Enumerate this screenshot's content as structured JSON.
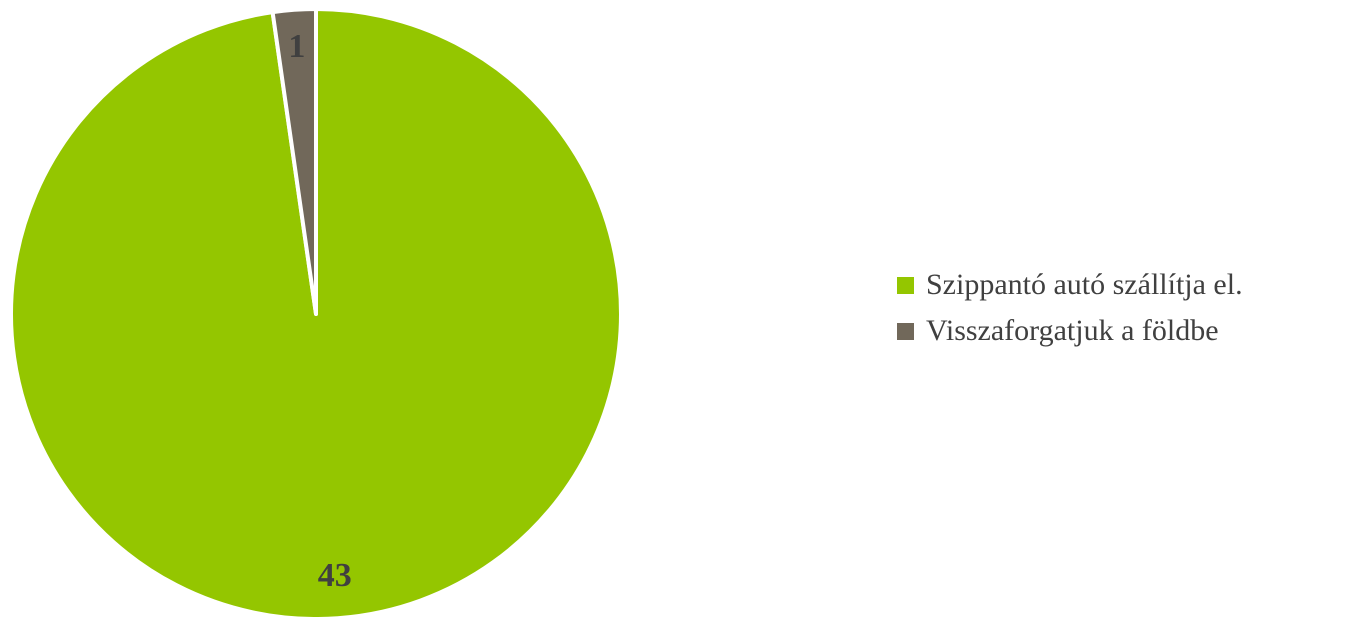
{
  "chart_data": {
    "type": "pie",
    "title": "",
    "slices": [
      {
        "label": "Szippantó autó szállítja el.",
        "value": 43,
        "color": "#94C600"
      },
      {
        "label": "Visszaforgatjuk a földbe",
        "value": 1,
        "color": "#71685A"
      }
    ],
    "start_angle": "12 o'clock",
    "direction": "clockwise",
    "slice_border_color": "#ffffff",
    "legend_position": "right"
  }
}
